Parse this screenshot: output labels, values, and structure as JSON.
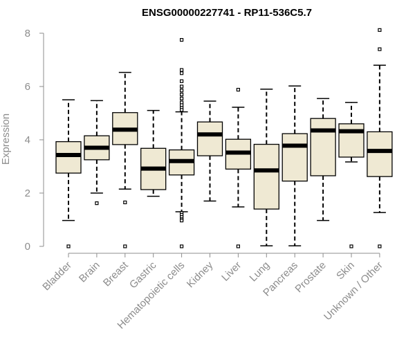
{
  "chart_data": {
    "type": "boxplot",
    "title": "ENSG00000227741 - RP11-536C5.7",
    "xlabel": "",
    "ylabel": "Expression",
    "ylim": [
      0,
      8
    ],
    "yticks": [
      0,
      2,
      4,
      6,
      8
    ],
    "colors": {
      "box_fill": "#efe9d3",
      "median": "#000000",
      "axis": "#8c8c8c"
    },
    "categories": [
      "Bladder",
      "Brain",
      "Breast",
      "Gastric",
      "Hematopoietic cells",
      "Kidney",
      "Liver",
      "Lung",
      "Pancreas",
      "Prostate",
      "Skin",
      "Unknown / Other"
    ],
    "boxes": [
      {
        "name": "Bladder",
        "whisker_low": 0.97,
        "q1": 2.75,
        "median": 3.43,
        "q3": 3.93,
        "whisker_high": 5.5,
        "outliers": [
          0.0
        ]
      },
      {
        "name": "Brain",
        "whisker_low": 2.0,
        "q1": 3.25,
        "median": 3.7,
        "q3": 4.15,
        "whisker_high": 5.47,
        "outliers": [
          1.62
        ]
      },
      {
        "name": "Breast",
        "whisker_low": 2.15,
        "q1": 3.82,
        "median": 4.38,
        "q3": 5.02,
        "whisker_high": 6.53,
        "outliers": [
          1.65,
          0.0
        ]
      },
      {
        "name": "Gastric",
        "whisker_low": 1.88,
        "q1": 2.13,
        "median": 2.92,
        "q3": 3.68,
        "whisker_high": 5.1,
        "outliers": []
      },
      {
        "name": "Hematopoietic cells",
        "whisker_low": 1.3,
        "q1": 2.68,
        "median": 3.2,
        "q3": 3.62,
        "whisker_high": 5.05,
        "outliers": [
          7.75,
          6.62,
          6.5,
          6.2,
          6.0,
          5.85,
          5.7,
          5.55,
          5.4,
          5.3,
          5.2,
          5.12,
          1.25,
          1.18,
          1.1,
          1.02,
          0.97,
          0.0
        ]
      },
      {
        "name": "Kidney",
        "whisker_low": 1.7,
        "q1": 3.4,
        "median": 4.2,
        "q3": 4.67,
        "whisker_high": 5.45,
        "outliers": []
      },
      {
        "name": "Liver",
        "whisker_low": 1.48,
        "q1": 2.9,
        "median": 3.52,
        "q3": 4.02,
        "whisker_high": 5.22,
        "outliers": [
          5.88,
          0.0
        ]
      },
      {
        "name": "Lung",
        "whisker_low": 0.02,
        "q1": 1.4,
        "median": 2.85,
        "q3": 3.83,
        "whisker_high": 5.9,
        "outliers": []
      },
      {
        "name": "Pancreas",
        "whisker_low": 0.02,
        "q1": 2.45,
        "median": 3.78,
        "q3": 4.23,
        "whisker_high": 6.02,
        "outliers": []
      },
      {
        "name": "Prostate",
        "whisker_low": 0.97,
        "q1": 2.65,
        "median": 4.35,
        "q3": 4.8,
        "whisker_high": 5.55,
        "outliers": []
      },
      {
        "name": "Skin",
        "whisker_low": 3.17,
        "q1": 3.35,
        "median": 4.32,
        "q3": 4.6,
        "whisker_high": 5.4,
        "outliers": [
          0.0
        ]
      },
      {
        "name": "Unknown / Other",
        "whisker_low": 1.27,
        "q1": 2.62,
        "median": 3.58,
        "q3": 4.3,
        "whisker_high": 6.8,
        "outliers": [
          8.12,
          7.4,
          0.0
        ]
      }
    ]
  }
}
